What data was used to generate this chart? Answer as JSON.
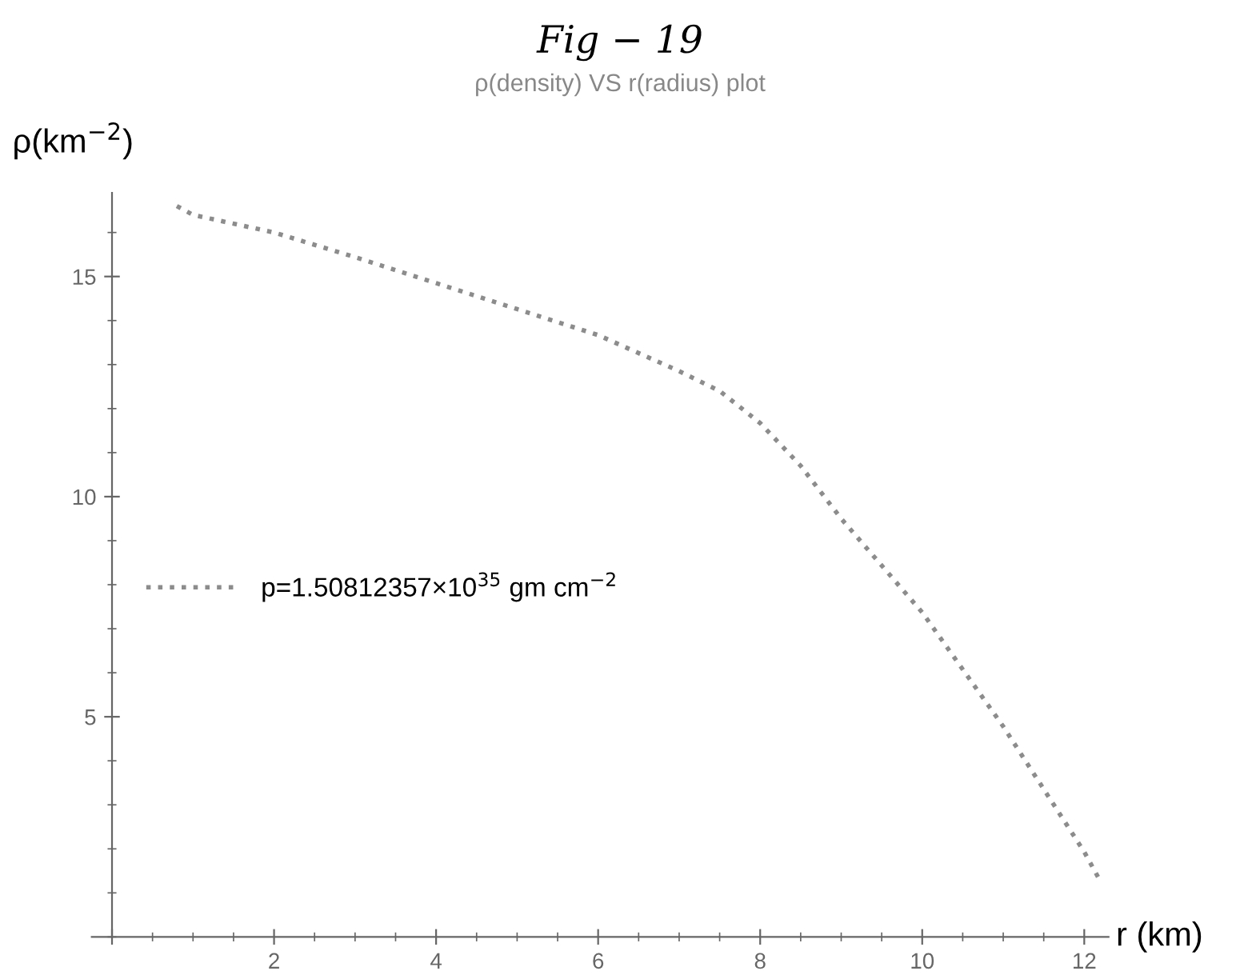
{
  "chart_data": {
    "type": "line",
    "title": "Fig − 19",
    "subtitle": "ρ(density) VS r(radius) plot",
    "xlabel": "r (km)",
    "ylabel": "ρ(km$^{−2}$)",
    "series": [
      {
        "name": "p=1.50812357×10$^{35}$ gm cm$^{−2}$",
        "color": "#8c8c8c",
        "x": [
          0.8,
          1,
          2,
          3,
          4,
          5,
          6,
          7,
          7.5,
          8,
          8.5,
          9,
          10,
          11,
          12,
          12.2
        ],
        "values": [
          16.6,
          16.4,
          16.0,
          15.44,
          14.85,
          14.26,
          13.67,
          12.85,
          12.4,
          11.67,
          10.7,
          9.5,
          7.37,
          4.78,
          1.93,
          1.26
        ]
      }
    ],
    "xlim": [
      -0.25,
      12.3
    ],
    "ylim": [
      0,
      16.9
    ],
    "xticks": [
      {
        "value": 0,
        "label": null
      },
      2,
      4,
      6,
      8,
      10,
      12
    ],
    "yticks": [
      5,
      10,
      15
    ],
    "line_style": "dotted",
    "marker": "none",
    "grid": false,
    "legend": "left"
  }
}
